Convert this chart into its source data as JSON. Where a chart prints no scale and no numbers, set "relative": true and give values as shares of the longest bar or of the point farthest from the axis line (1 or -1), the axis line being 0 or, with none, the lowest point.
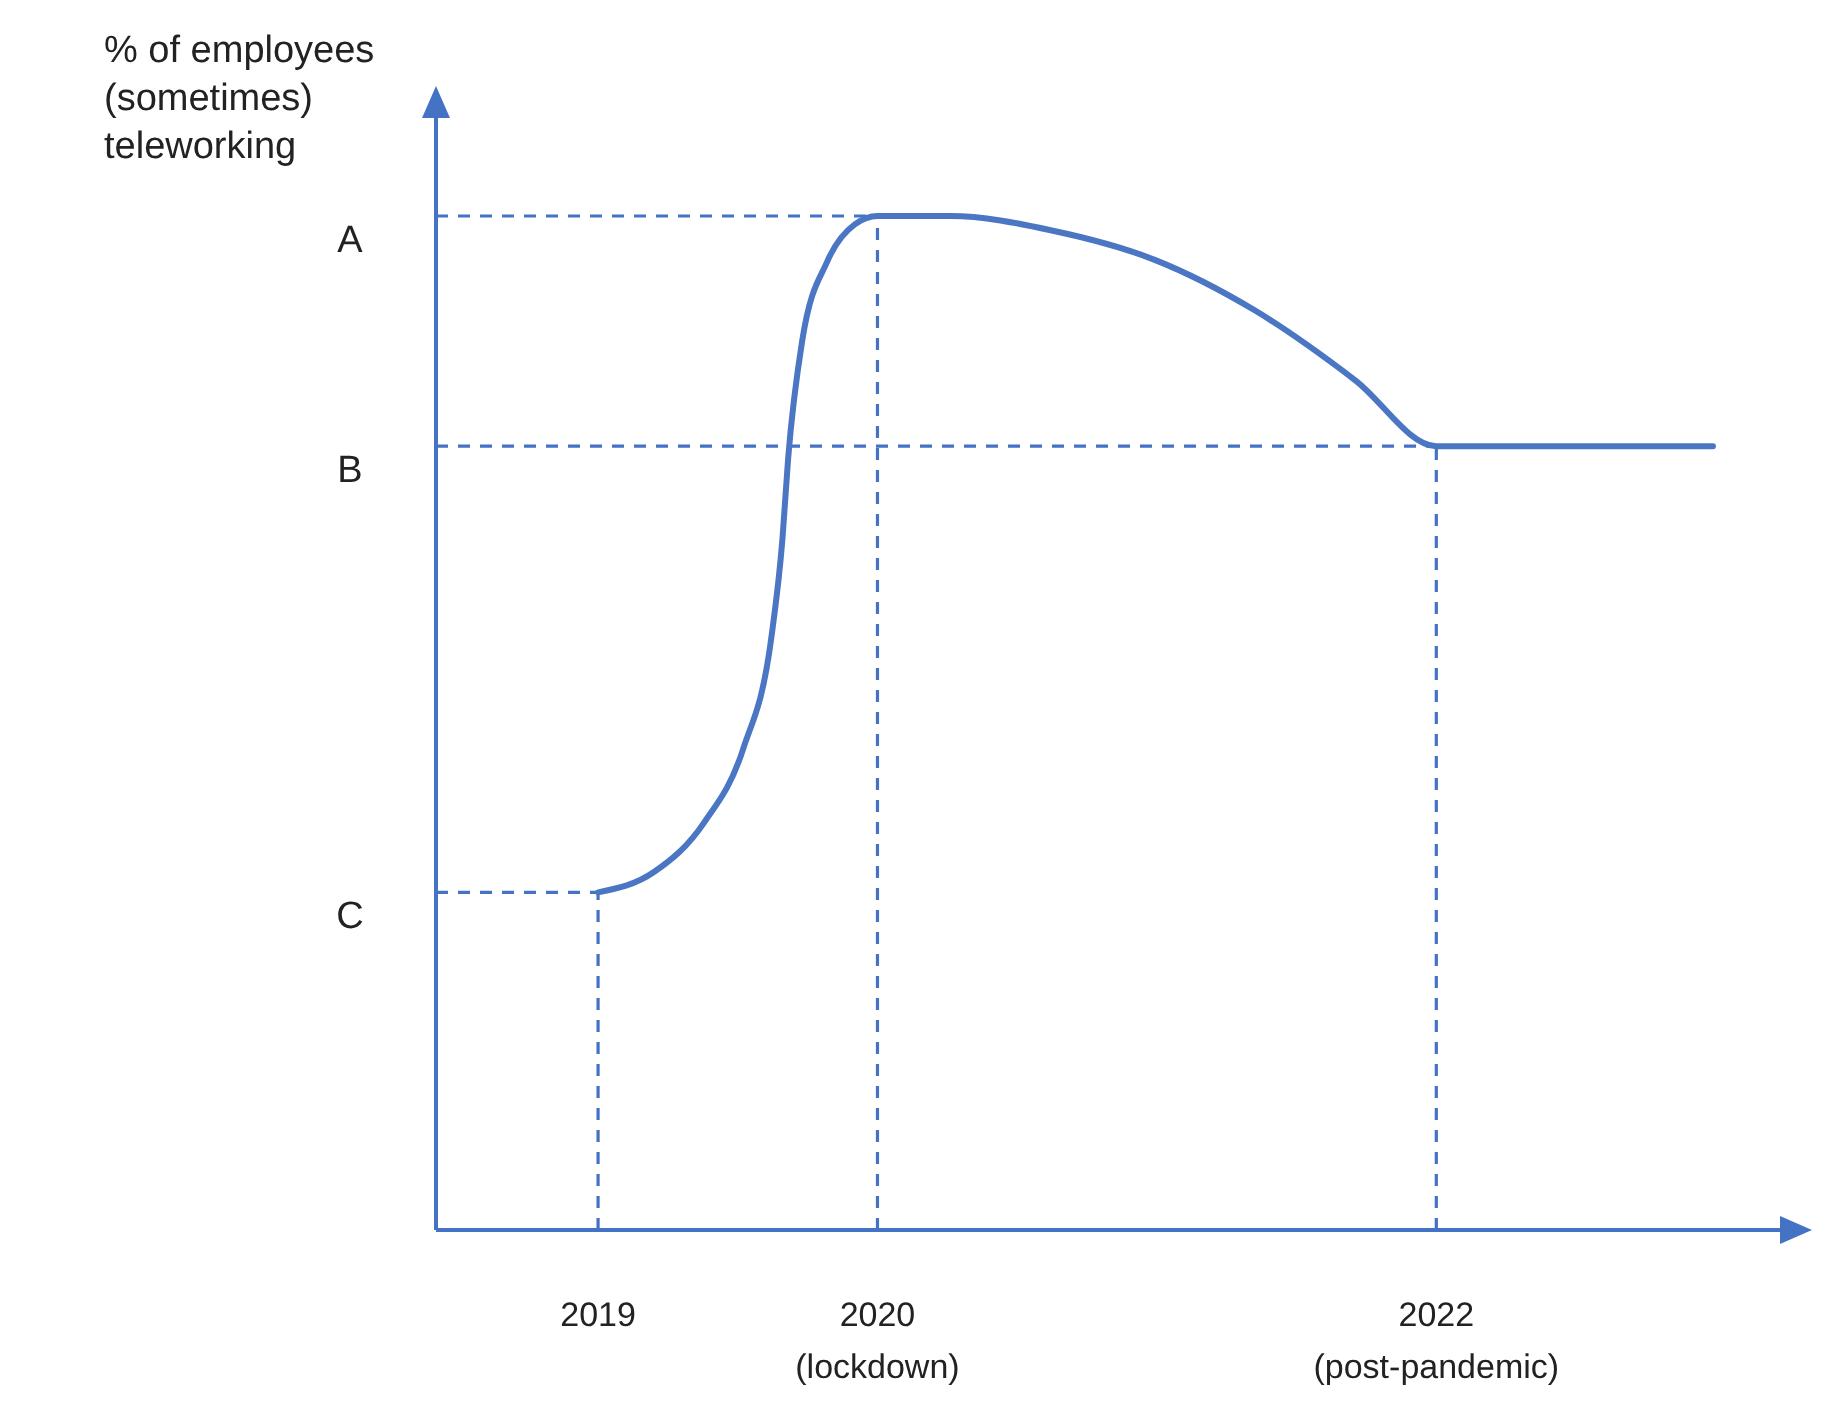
{
  "chart_data": {
    "type": "line",
    "relative": true,
    "ylabel": "% of employees\n(sometimes)\nteleworking",
    "xlim": [
      2018.42,
      2023.23
    ],
    "xticks": [
      {
        "value": 2019,
        "label": "2019"
      },
      {
        "value": 2020,
        "label": "2020\n(lockdown)"
      },
      {
        "value": 2022,
        "label": "2022\n(post-pandemic)"
      }
    ],
    "x": [
      2019,
      2019.2,
      2019.38,
      2019.52,
      2019.62,
      2019.66,
      2019.68,
      2019.73,
      2019.82,
      2019.92,
      2020,
      2020.26,
      2020.62,
      2020.99,
      2021.35,
      2021.71,
      2022,
      2022.99
    ],
    "series": [
      {
        "color": "#4a76c4",
        "values": [
          0.333,
          0.353,
          0.402,
          0.475,
          0.584,
          0.682,
          0.76,
          0.876,
          0.955,
          0.992,
          1,
          1,
          0.986,
          0.957,
          0.907,
          0.838,
          0.773,
          0.773
        ]
      }
    ],
    "ref_lines": [
      {
        "axis": "y",
        "value": 1,
        "label": "A",
        "color": "#4472c4",
        "line_style": "dashed"
      },
      {
        "axis": "y",
        "value": 0.773,
        "label": "B",
        "color": "#4472c4",
        "line_style": "dashed"
      },
      {
        "axis": "y",
        "value": 0.333,
        "label": "C",
        "color": "#4472c4",
        "line_style": "dashed"
      },
      {
        "axis": "x",
        "value": 2019,
        "color": "#4472c4",
        "line_style": "dashed"
      },
      {
        "axis": "x",
        "value": 2020,
        "color": "#4472c4",
        "line_style": "dashed"
      },
      {
        "axis": "x",
        "value": 2022,
        "color": "#4472c4",
        "line_style": "dashed"
      }
    ],
    "grid": false,
    "marker": "none",
    "line_style": "solid"
  }
}
